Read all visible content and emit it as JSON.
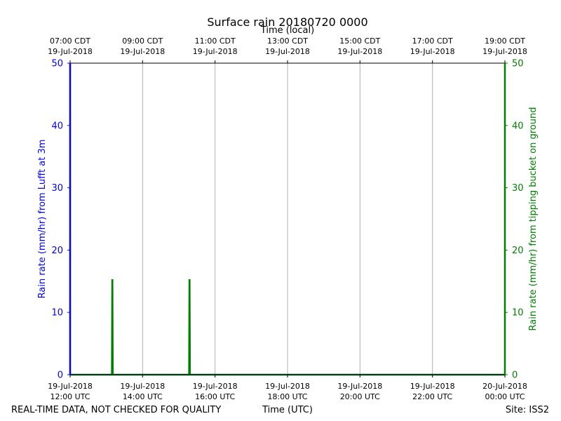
{
  "chart_data": {
    "type": "line",
    "title": "Surface rain 20180720 0000",
    "top_axis_label": "Time (local)",
    "xlabel": "Time (UTC)",
    "ylabel_left": "Rain rate (mm/hr) from Lufft at 3m",
    "ylabel_right": "Rain rate (mm/hr) from tipping bucket on ground",
    "footer_left": "REAL-TIME DATA, NOT CHECKED FOR QUALITY",
    "footer_right": "Site: ISS2",
    "xlim_hours": [
      12,
      24
    ],
    "ylim": [
      0,
      50
    ],
    "yticks": [
      0,
      10,
      20,
      30,
      40,
      50
    ],
    "grid": "vertical",
    "x_ticks_utc": [
      {
        "hour": 12,
        "date": "19-Jul-2018",
        "time": "12:00 UTC"
      },
      {
        "hour": 14,
        "date": "19-Jul-2018",
        "time": "14:00 UTC"
      },
      {
        "hour": 16,
        "date": "19-Jul-2018",
        "time": "16:00 UTC"
      },
      {
        "hour": 18,
        "date": "19-Jul-2018",
        "time": "18:00 UTC"
      },
      {
        "hour": 20,
        "date": "19-Jul-2018",
        "time": "20:00 UTC"
      },
      {
        "hour": 22,
        "date": "19-Jul-2018",
        "time": "22:00 UTC"
      },
      {
        "hour": 24,
        "date": "20-Jul-2018",
        "time": "00:00 UTC"
      }
    ],
    "x_ticks_local": [
      {
        "hour": 12,
        "time": "07:00 CDT",
        "date": "19-Jul-2018"
      },
      {
        "hour": 14,
        "time": "09:00 CDT",
        "date": "19-Jul-2018"
      },
      {
        "hour": 16,
        "time": "11:00 CDT",
        "date": "19-Jul-2018"
      },
      {
        "hour": 18,
        "time": "13:00 CDT",
        "date": "19-Jul-2018"
      },
      {
        "hour": 20,
        "time": "15:00 CDT",
        "date": "19-Jul-2018"
      },
      {
        "hour": 22,
        "time": "17:00 CDT",
        "date": "19-Jul-2018"
      },
      {
        "hour": 24,
        "time": "19:00 CDT",
        "date": "19-Jul-2018"
      }
    ],
    "series": [
      {
        "axis": "left",
        "color": "#0000ff",
        "x_hours": [
          12.0,
          24.0
        ],
        "values": [
          0,
          0
        ]
      },
      {
        "axis": "right",
        "color": "#008000",
        "x_hours": [
          12.0,
          13.15,
          13.16,
          13.17,
          13.18,
          15.28,
          15.29,
          15.3,
          15.31,
          24.0
        ],
        "values": [
          0,
          0,
          15.2,
          15.2,
          0,
          0,
          15.2,
          15.2,
          0,
          0
        ]
      }
    ]
  }
}
